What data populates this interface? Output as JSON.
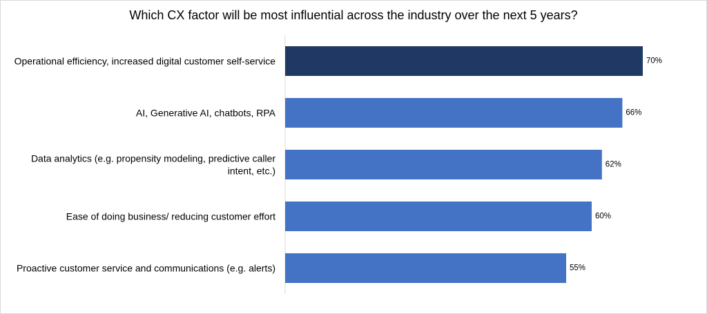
{
  "chart_data": {
    "type": "bar",
    "orientation": "horizontal",
    "title": "Which CX factor will be most influential across the industry over the next 5 years?",
    "categories": [
      [
        "Operational efficiency, increased digital customer self-service"
      ],
      [
        "AI, Generative AI, chatbots, RPA"
      ],
      [
        "Data analytics (e.g. propensity modeling, predictive caller",
        "intent, etc.)"
      ],
      [
        "Ease of doing business/ reducing customer effort"
      ],
      [
        "Proactive customer service and communications (e.g. alerts)"
      ]
    ],
    "values": [
      70,
      66,
      62,
      60,
      55
    ],
    "data_labels": [
      "70%",
      "66%",
      "62%",
      "60%",
      "55%"
    ],
    "value_unit": "%",
    "xlim": [
      0,
      70
    ],
    "grid": false,
    "legend": "none",
    "colors": {
      "highlight": "#203864",
      "bar": "#4472c4",
      "axis": "#d9d9d9"
    },
    "highlight_index": 0
  }
}
